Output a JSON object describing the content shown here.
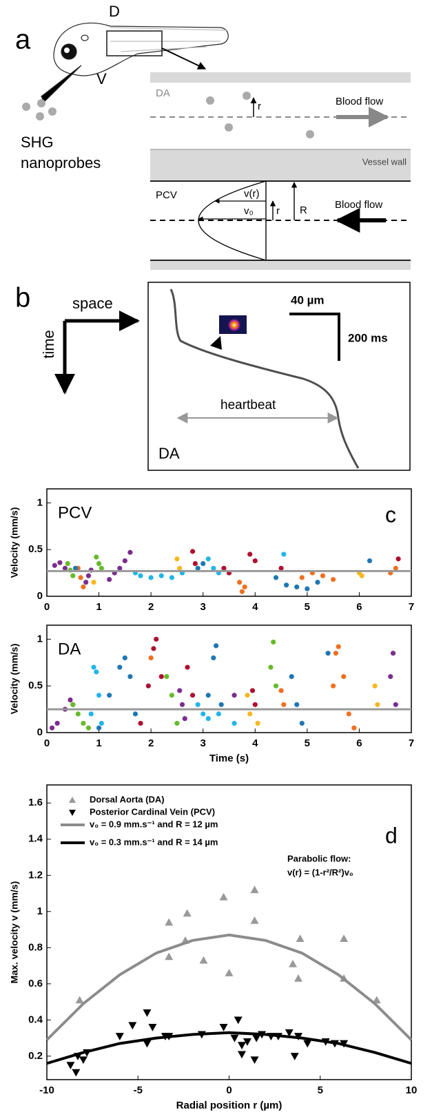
{
  "panel_a": {
    "label": "a",
    "dorsal": "D",
    "ventral": "V",
    "probes": [
      "SHG",
      "nanoprobes"
    ],
    "da_label": "DA",
    "flow_top": "Blood flow",
    "vessel_wall": "Vessel wall",
    "pcv_label": "PCV",
    "v_r": "v(r)",
    "v0": "v₀",
    "r_top": "r",
    "r_bottom": "r",
    "R": "R",
    "flow_bottom": "Blood flow"
  },
  "panel_b": {
    "label": "b",
    "space": "space",
    "time": "time",
    "scale_space": "40 µm",
    "scale_time": "200 ms",
    "heartbeat": "heartbeat",
    "region": "DA"
  },
  "chart_data": [
    {
      "type": "scatter",
      "panel_label": "c",
      "inset_label": "PCV",
      "y_label": "Velocity (mm/s)",
      "xlim": [
        0,
        7
      ],
      "xticks": [
        0,
        1,
        2,
        3,
        4,
        5,
        6,
        7
      ],
      "ylim": [
        0,
        1.15
      ],
      "yticks": [
        0,
        0.5,
        1
      ],
      "mean_line": {
        "value": 0.27,
        "color": "#999999"
      },
      "series": [
        {
          "color": "#7b2d8e",
          "x": [
            0.15,
            0.25,
            0.35,
            0.75,
            0.8,
            0.85,
            1.2,
            1.3,
            1.4,
            1.5,
            1.6
          ],
          "values": [
            0.33,
            0.36,
            0.3,
            0.15,
            0.22,
            0.28,
            0.18,
            0.25,
            0.3,
            0.38,
            0.47
          ]
        },
        {
          "color": "#66bb2a",
          "x": [
            0.4,
            0.45,
            0.5,
            0.95,
            1.0,
            1.05
          ],
          "values": [
            0.35,
            0.28,
            0.22,
            0.42,
            0.35,
            0.3
          ]
        },
        {
          "color": "#f07020",
          "x": [
            0.6,
            0.65,
            0.7,
            3.7,
            3.75,
            3.8,
            4.9,
            5.1,
            5.3,
            5.5,
            6.6,
            6.7
          ],
          "values": [
            0.3,
            0.2,
            0.1,
            0.15,
            0.05,
            0.1,
            0.2,
            0.25,
            0.22,
            0.18,
            0.25,
            0.3
          ]
        },
        {
          "color": "#1f77b4",
          "x": [
            0.55,
            2.9,
            3.0,
            4.4,
            4.6,
            4.8,
            5.0,
            5.2,
            6.2
          ],
          "values": [
            0.3,
            0.3,
            0.35,
            0.2,
            0.12,
            0.1,
            0.08,
            0.15,
            0.38
          ]
        },
        {
          "color": "#f5b820",
          "x": [
            0.9,
            2.5,
            2.55,
            6.0,
            6.05
          ],
          "values": [
            0.15,
            0.4,
            0.3,
            0.25,
            0.22
          ]
        },
        {
          "color": "#b01030",
          "x": [
            2.8,
            2.85,
            3.4,
            3.5,
            3.9,
            4.0,
            4.5,
            6.75
          ],
          "values": [
            0.48,
            0.35,
            0.3,
            0.25,
            0.45,
            0.38,
            0.3,
            0.4
          ]
        },
        {
          "color": "#22b5e8",
          "x": [
            1.7,
            1.8,
            2.0,
            2.2,
            2.4,
            2.6,
            3.1,
            3.2,
            3.3,
            4.55
          ],
          "values": [
            0.25,
            0.22,
            0.2,
            0.22,
            0.2,
            0.25,
            0.4,
            0.3,
            0.25,
            0.45
          ]
        }
      ]
    },
    {
      "type": "scatter",
      "inset_label": "DA",
      "y_label": "Velocity (mm/s)",
      "x_label": "Time (s)",
      "xlim": [
        0,
        7
      ],
      "xticks": [
        0,
        1,
        2,
        3,
        4,
        5,
        6,
        7
      ],
      "ylim": [
        0,
        1.15
      ],
      "yticks": [
        0,
        0.5,
        1
      ],
      "mean_line": {
        "value": 0.25,
        "color": "#999999"
      },
      "series": [
        {
          "color": "#7b2d8e",
          "x": [
            0.1,
            0.2,
            0.35,
            0.45,
            0.5,
            2.55,
            2.6,
            2.65,
            3.6,
            6.6,
            6.65,
            6.7
          ],
          "values": [
            0.05,
            0.1,
            0.25,
            0.35,
            0.3,
            0.45,
            0.3,
            0.15,
            0.4,
            0.6,
            0.85,
            0.3
          ]
        },
        {
          "color": "#66bb2a",
          "x": [
            0.5,
            0.6,
            0.7,
            0.8,
            2.3,
            2.4,
            2.5,
            4.3,
            4.35,
            4.4
          ],
          "values": [
            0.3,
            0.2,
            0.1,
            0.05,
            0.6,
            0.4,
            0.1,
            0.7,
            0.97,
            0.5
          ]
        },
        {
          "color": "#22b5e8",
          "x": [
            0.85,
            0.9,
            0.95,
            1.0,
            1.05,
            2.9,
            3.0,
            3.1,
            3.3,
            3.6
          ],
          "values": [
            0.2,
            0.7,
            0.65,
            0.4,
            0.1,
            0.3,
            0.2,
            0.15,
            0.2,
            0.1
          ]
        },
        {
          "color": "#1f77b4",
          "x": [
            1.0,
            1.2,
            1.4,
            1.5,
            1.6,
            1.7,
            3.1,
            3.2,
            3.25,
            3.35,
            4.7,
            4.8,
            4.9,
            5.4
          ],
          "values": [
            0.05,
            0.4,
            0.7,
            0.8,
            0.6,
            0.2,
            0.4,
            0.8,
            0.93,
            0.3,
            0.6,
            0.3,
            0.1,
            0.85
          ]
        },
        {
          "color": "#b01030",
          "x": [
            1.8,
            1.95,
            2.05,
            2.1,
            2.2,
            2.7,
            2.8,
            3.95,
            4.0
          ],
          "values": [
            0.1,
            0.5,
            0.9,
            1.0,
            0.6,
            0.7,
            0.4,
            0.45,
            0.3
          ]
        },
        {
          "color": "#f07020",
          "x": [
            2.0,
            4.5,
            4.55,
            5.5,
            5.55,
            5.6,
            5.7,
            5.8,
            5.9
          ],
          "values": [
            0.8,
            0.45,
            0.3,
            0.5,
            0.85,
            0.92,
            0.6,
            0.2,
            0.05
          ]
        },
        {
          "color": "#f5b820",
          "x": [
            3.85,
            3.9,
            4.05,
            6.3,
            6.35
          ],
          "values": [
            0.4,
            0.2,
            0.1,
            0.5,
            0.3
          ]
        }
      ]
    },
    {
      "type": "scatter",
      "panel_label": "d",
      "y_label": "Max. velocity v (mm/s)",
      "x_label": "Radial position r (µm)",
      "xlim": [
        -10,
        10
      ],
      "xticks": [
        -10,
        -5,
        0,
        5,
        10
      ],
      "ylim": [
        0.07,
        1.7
      ],
      "yticks": [
        0.2,
        0.4,
        0.6,
        0.8,
        1,
        1.2,
        1.4,
        1.6
      ],
      "legend": "upper left",
      "annotations": [
        "Parabolic flow:",
        "v(r) = (1-r²/R²)v₀"
      ],
      "series": [
        {
          "name": "Dorsal Aorta (DA)",
          "marker": "triangle-up",
          "color": "#999999",
          "x": [
            -8.2,
            -3.3,
            -3.3,
            -2.3,
            -2.4,
            -1.4,
            -0.3,
            0,
            1.4,
            1.4,
            3.5,
            3.9,
            3.8,
            6.3,
            6.3,
            8.1
          ],
          "values": [
            0.51,
            0.94,
            0.75,
            0.99,
            0.84,
            0.73,
            1.08,
            0.66,
            1.12,
            0.95,
            0.71,
            0.85,
            0.63,
            0.85,
            0.63,
            0.51
          ]
        },
        {
          "name": "Posterior Cardinal Vein (PCV)",
          "marker": "triangle-down",
          "color": "#000000",
          "x": [
            -8.7,
            -8.4,
            -8.3,
            -8.0,
            -7.8,
            -6.0,
            -5.3,
            -4.5,
            -4.5,
            -4.2,
            -3.5,
            -3.3,
            -1.5,
            -0.3,
            0.3,
            0.5,
            0.7,
            0.7,
            1.0,
            1.4,
            1.5,
            1.8,
            2.3,
            2.7,
            3.3,
            3.6,
            3.8,
            4.3,
            5.3,
            5.8,
            6.3
          ],
          "values": [
            0.15,
            0.11,
            0.2,
            0.18,
            0.22,
            0.31,
            0.37,
            0.44,
            0.27,
            0.36,
            0.31,
            0.31,
            0.32,
            0.36,
            0.3,
            0.4,
            0.26,
            0.21,
            0.28,
            0.18,
            0.3,
            0.32,
            0.31,
            0.31,
            0.33,
            0.2,
            0.31,
            0.27,
            0.28,
            0.27,
            0.27
          ]
        },
        {
          "name": "v₀ = 0.9 mm.s⁻¹ and R = 12 µm",
          "mode": "line",
          "color": "#8c8c8c",
          "x": [
            -10,
            -8,
            -6,
            -4,
            -2,
            0,
            2,
            4,
            6,
            8,
            10
          ],
          "values": [
            0.29,
            0.49,
            0.65,
            0.77,
            0.84,
            0.87,
            0.84,
            0.77,
            0.65,
            0.49,
            0.29
          ]
        },
        {
          "name": "v₀ = 0.3 mm.s⁻¹ and R = 14 µm",
          "mode": "line",
          "color": "#000000",
          "x": [
            -10,
            -8,
            -6,
            -4,
            -2,
            0,
            2,
            4,
            6,
            8,
            10
          ],
          "values": [
            0.16,
            0.22,
            0.27,
            0.3,
            0.32,
            0.33,
            0.32,
            0.3,
            0.27,
            0.22,
            0.16
          ]
        }
      ]
    }
  ]
}
